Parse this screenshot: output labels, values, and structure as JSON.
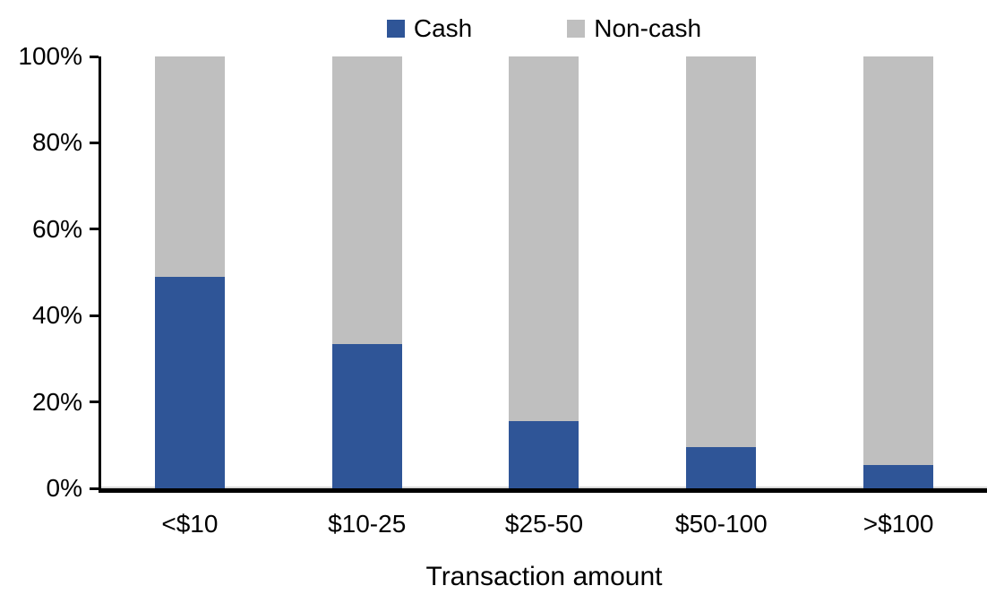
{
  "chart_data": {
    "type": "bar",
    "stacked": true,
    "percent_stacked": true,
    "title": "",
    "xlabel": "Transaction amount",
    "ylabel": "",
    "categories": [
      "<$10",
      "$10-25",
      "$25-50",
      "$50-100",
      ">$100"
    ],
    "series": [
      {
        "name": "Cash",
        "color": "#2F5597",
        "values": [
          49,
          33.5,
          15.5,
          9.5,
          5.5
        ]
      },
      {
        "name": "Non-cash",
        "color": "#BFBFBF",
        "values": [
          51,
          66.5,
          84.5,
          90.5,
          94.5
        ]
      }
    ],
    "y_ticks": [
      "0%",
      "20%",
      "40%",
      "60%",
      "80%",
      "100%"
    ],
    "ylim": [
      0,
      100
    ],
    "grid": false,
    "legend_position": "top-center"
  },
  "colors": {
    "axis": "#000000",
    "text": "#000000",
    "zero_gridline": "#D9D9D9",
    "background": "#FFFFFF"
  }
}
